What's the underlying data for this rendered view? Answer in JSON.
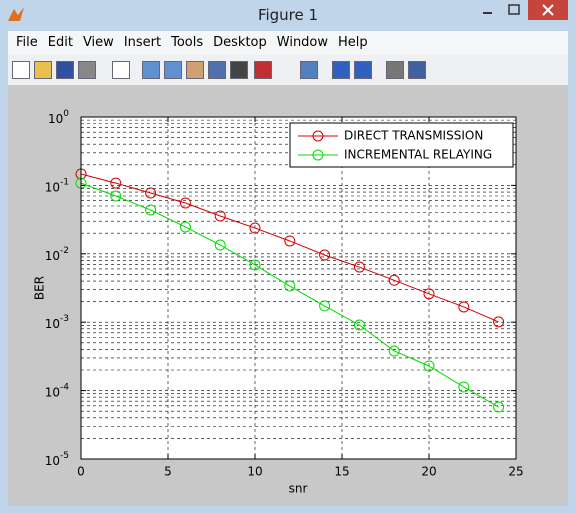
{
  "window": {
    "title": "Figure 1",
    "menu": [
      "File",
      "Edit",
      "View",
      "Insert",
      "Tools",
      "Desktop",
      "Window",
      "Help"
    ]
  },
  "chart_data": {
    "type": "line",
    "xlabel": "snr",
    "ylabel": "BER",
    "x": [
      0,
      2,
      4,
      6,
      8,
      10,
      12,
      14,
      16,
      18,
      20,
      22,
      24
    ],
    "series": [
      {
        "name": "DIRECT TRANSMISSION",
        "color": "#d40000",
        "values": [
          0.147,
          0.108,
          0.0774,
          0.0553,
          0.0357,
          0.0238,
          0.0154,
          0.0096,
          0.0064,
          0.0041,
          0.0026,
          0.00167,
          0.00101
        ]
      },
      {
        "name": "INCREMENTAL RELAYING",
        "color": "#00dd00",
        "values": [
          0.108,
          0.07,
          0.0437,
          0.0247,
          0.01345,
          0.00686,
          0.00338,
          0.00173,
          0.00091,
          0.00038,
          0.000229,
          0.000113,
          5.75e-05
        ]
      }
    ],
    "xlim": [
      0,
      25
    ],
    "xticks": [
      0,
      5,
      10,
      15,
      20,
      25
    ],
    "ylim": [
      1e-05,
      1
    ],
    "yticks": [
      {
        "value": 1e-05,
        "label": "10",
        "exponent": "-5"
      },
      {
        "value": 0.0001,
        "label": "10",
        "exponent": "-4"
      },
      {
        "value": 0.001,
        "label": "10",
        "exponent": "-3"
      },
      {
        "value": 0.01,
        "label": "10",
        "exponent": "-2"
      },
      {
        "value": 0.1,
        "label": "10",
        "exponent": "-1"
      },
      {
        "value": 1,
        "label": "10",
        "exponent": "0"
      }
    ],
    "yscale": "log",
    "grid": true,
    "minor_grid": true,
    "legend": "top-right",
    "marker": "circle"
  }
}
